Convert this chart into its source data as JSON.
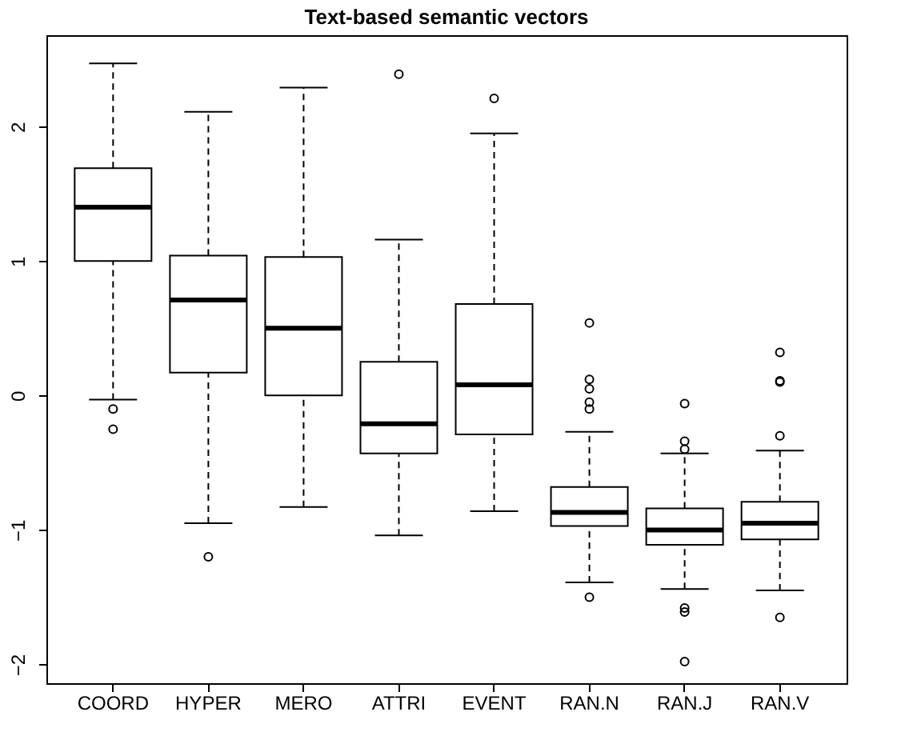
{
  "chart_data": {
    "type": "box",
    "title": "Text-based semantic vectors",
    "categories": [
      "COORD",
      "HYPER",
      "MERO",
      "ATTRI",
      "EVENT",
      "RAN.N",
      "RAN.J",
      "RAN.V"
    ],
    "boxes": [
      {
        "low": -0.03,
        "q1": 1.0,
        "median": 1.4,
        "q3": 1.69,
        "high": 2.47,
        "outliers": [
          -0.1,
          -0.25
        ]
      },
      {
        "low": -0.95,
        "q1": 0.17,
        "median": 0.71,
        "q3": 1.04,
        "high": 2.11,
        "outliers": [
          -1.2
        ]
      },
      {
        "low": -0.83,
        "q1": 0.0,
        "median": 0.5,
        "q3": 1.03,
        "high": 2.29
      },
      {
        "low": -1.04,
        "q1": -0.43,
        "median": -0.21,
        "q3": 0.25,
        "high": 1.16,
        "outliers": [
          2.39
        ]
      },
      {
        "low": -0.86,
        "q1": -0.29,
        "median": 0.08,
        "q3": 0.68,
        "high": 1.95,
        "outliers": [
          2.21
        ]
      },
      {
        "low": -1.39,
        "q1": -0.97,
        "median": -0.87,
        "q3": -0.68,
        "high": -0.27,
        "outliers": [
          0.54,
          0.12,
          0.05,
          -0.05,
          -0.1,
          -1.5
        ]
      },
      {
        "low": -1.44,
        "q1": -1.11,
        "median": -1.0,
        "q3": -0.84,
        "high": -0.43,
        "outliers": [
          -0.06,
          -0.34,
          -0.4,
          -1.58,
          -1.61,
          -1.98
        ]
      },
      {
        "low": -1.45,
        "q1": -1.07,
        "median": -0.95,
        "q3": -0.79,
        "high": -0.41,
        "outliers": [
          0.32,
          0.1,
          0.11,
          -0.3,
          -1.65
        ]
      }
    ],
    "color": "#000000",
    "ylim": [
      -2.14,
      2.68
    ],
    "yticks": [
      -2,
      -1,
      0,
      1,
      2
    ],
    "grid": false,
    "line_style": "dashed"
  }
}
